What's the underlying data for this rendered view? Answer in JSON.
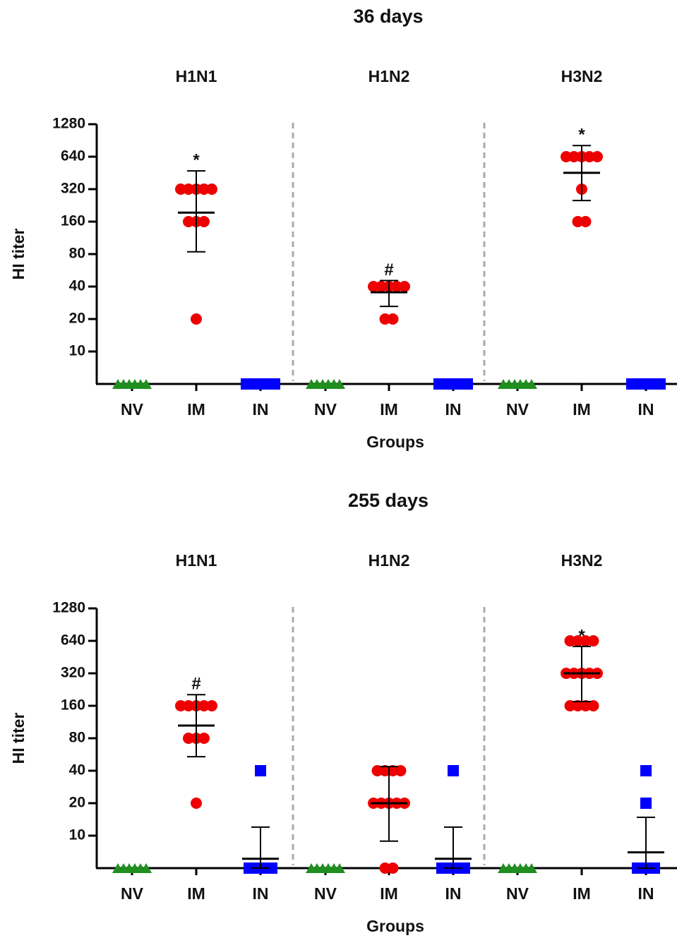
{
  "chart_data": [
    {
      "type": "dot",
      "title": "36 days",
      "subgroups": [
        "H1N1",
        "H1N2",
        "H3N2"
      ],
      "categories": [
        "NV",
        "IM",
        "IN",
        "NV",
        "IM",
        "IN",
        "NV",
        "IM",
        "IN"
      ],
      "xlabel": "Groups",
      "ylabel": "HI titer",
      "log_base": 2,
      "ylim": [
        5,
        1280
      ],
      "yticks": [
        10,
        20,
        40,
        80,
        160,
        320,
        640,
        1280
      ],
      "marker_colors": [
        "#1f8f1f",
        "#ee0000",
        "#0000ff"
      ],
      "marker_shapes": [
        "triangle",
        "circle",
        "square"
      ],
      "groups": [
        {
          "points": [
            5,
            5,
            5,
            5,
            5,
            5
          ],
          "mean": null,
          "whisker": null,
          "annotation": null
        },
        {
          "points": [
            320,
            320,
            320,
            320,
            320,
            160,
            160,
            160,
            20
          ],
          "mean": 194,
          "whisker": [
            84,
            473
          ],
          "annotation": "*"
        },
        {
          "points": [
            5,
            5,
            5,
            5,
            5,
            5
          ],
          "mean": null,
          "whisker": null,
          "annotation": null
        },
        {
          "points": [
            5,
            5,
            5,
            5,
            5,
            5
          ],
          "mean": null,
          "whisker": null,
          "annotation": null
        },
        {
          "points": [
            40,
            40,
            40,
            40,
            40,
            20,
            20
          ],
          "mean": 35.4,
          "whisker": [
            26.2,
            45.5
          ],
          "annotation": "#"
        },
        {
          "points": [
            5,
            5,
            5,
            5,
            5,
            5
          ],
          "mean": null,
          "whisker": null,
          "annotation": null
        },
        {
          "points": [
            5,
            5,
            5,
            5,
            5,
            5
          ],
          "mean": null,
          "whisker": null,
          "annotation": null
        },
        {
          "points": [
            640,
            640,
            640,
            640,
            640,
            320,
            160,
            160
          ],
          "mean": 453,
          "whisker": [
            251,
            812
          ],
          "annotation": "*"
        },
        {
          "points": [
            5,
            5,
            5,
            5,
            5,
            5
          ],
          "mean": null,
          "whisker": null,
          "annotation": null
        }
      ]
    },
    {
      "type": "dot",
      "title": "255 days",
      "subgroups": [
        "H1N1",
        "H1N2",
        "H3N2"
      ],
      "categories": [
        "NV",
        "IM",
        "IN",
        "NV",
        "IM",
        "IN",
        "NV",
        "IM",
        "IN"
      ],
      "xlabel": "Groups",
      "ylabel": "HI titer",
      "log_base": 2,
      "ylim": [
        5,
        1280
      ],
      "yticks": [
        10,
        20,
        40,
        80,
        160,
        320,
        640,
        1280
      ],
      "marker_colors": [
        "#1f8f1f",
        "#ee0000",
        "#0000ff"
      ],
      "marker_shapes": [
        "triangle",
        "circle",
        "square"
      ],
      "groups": [
        {
          "points": [
            5,
            5,
            5,
            5,
            5,
            5
          ],
          "mean": null,
          "whisker": null,
          "annotation": null
        },
        {
          "points": [
            160,
            160,
            160,
            160,
            160,
            80,
            80,
            80,
            20
          ],
          "mean": 105,
          "whisker": [
            54,
            203
          ],
          "annotation": "#"
        },
        {
          "points": [
            40,
            5,
            5,
            5,
            5,
            5
          ],
          "mean": 6.1,
          "whisker": [
            5,
            12
          ],
          "annotation": null
        },
        {
          "points": [
            5,
            5,
            5,
            5,
            5,
            5
          ],
          "mean": null,
          "whisker": null,
          "annotation": null
        },
        {
          "points": [
            40,
            40,
            40,
            40,
            20,
            20,
            20,
            20,
            20,
            5,
            5
          ],
          "mean": 20,
          "whisker": [
            8.9,
            43.7
          ],
          "annotation": null
        },
        {
          "points": [
            40,
            5,
            5,
            5,
            5,
            5
          ],
          "mean": 6.1,
          "whisker": [
            5,
            12
          ],
          "annotation": null
        },
        {
          "points": [
            5,
            5,
            5,
            5,
            5,
            5
          ],
          "mean": null,
          "whisker": null,
          "annotation": null
        },
        {
          "points": [
            640,
            640,
            640,
            640,
            320,
            320,
            320,
            320,
            320,
            160,
            160,
            160,
            160
          ],
          "mean": 320,
          "whisker": [
            175,
            568
          ],
          "annotation": "*"
        },
        {
          "points": [
            40,
            20,
            5,
            5,
            5,
            5
          ],
          "mean": 7.0,
          "whisker": [
            5,
            14.8
          ],
          "annotation": null
        }
      ]
    }
  ]
}
